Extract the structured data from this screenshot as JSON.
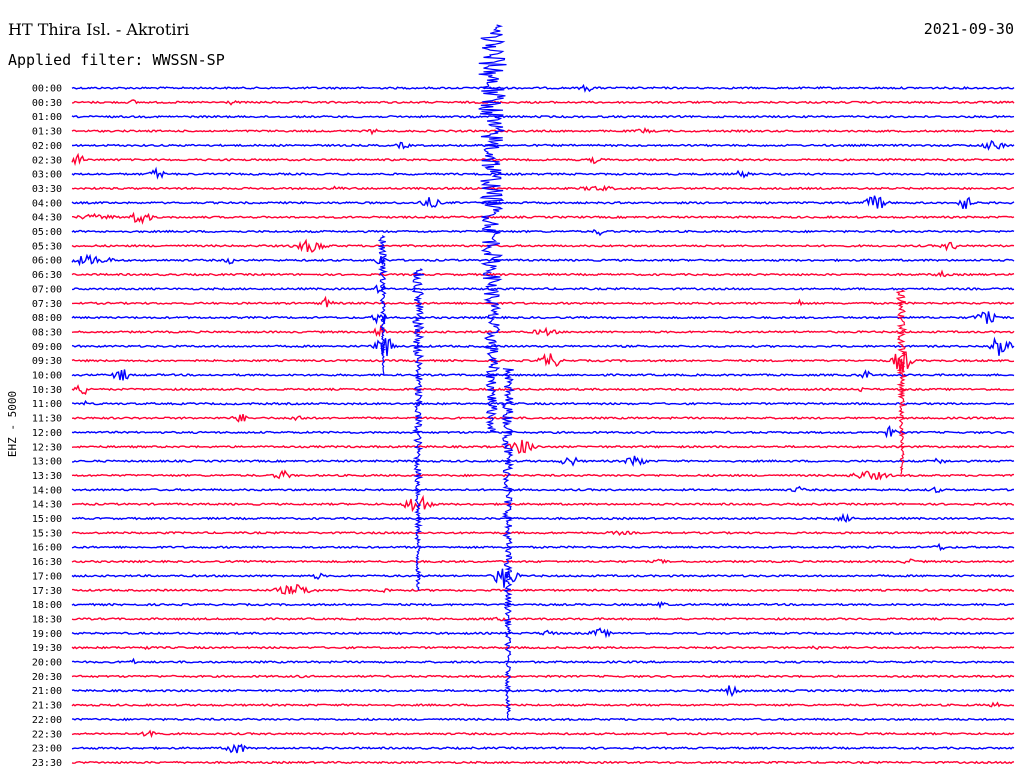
{
  "header": {
    "station": "HT Thira Isl. - Akrotiri",
    "date": "2021-09-30",
    "filter": "Applied filter: WWSSN-SP"
  },
  "chart_data": {
    "type": "line",
    "title": "HT Thira Isl. - Akrotiri",
    "ylabel": "EHZ - 5000",
    "row_labels": [
      "00:00",
      "00:30",
      "01:00",
      "01:30",
      "02:00",
      "02:30",
      "03:00",
      "03:30",
      "04:00",
      "04:30",
      "05:00",
      "05:30",
      "06:00",
      "06:30",
      "07:00",
      "07:30",
      "08:00",
      "08:30",
      "09:00",
      "09:30",
      "10:00",
      "10:30",
      "11:00",
      "11:30",
      "12:00",
      "12:30",
      "13:00",
      "13:30",
      "14:00",
      "14:30",
      "15:00",
      "15:30",
      "16:00",
      "16:30",
      "17:00",
      "17:30",
      "18:00",
      "18:30",
      "19:00",
      "19:30",
      "20:00",
      "20:30",
      "21:00",
      "21:30",
      "22:00",
      "22:30",
      "23:00",
      "23:30"
    ],
    "colors": [
      "#0000ff",
      "#ff0033"
    ],
    "grid": false
  }
}
